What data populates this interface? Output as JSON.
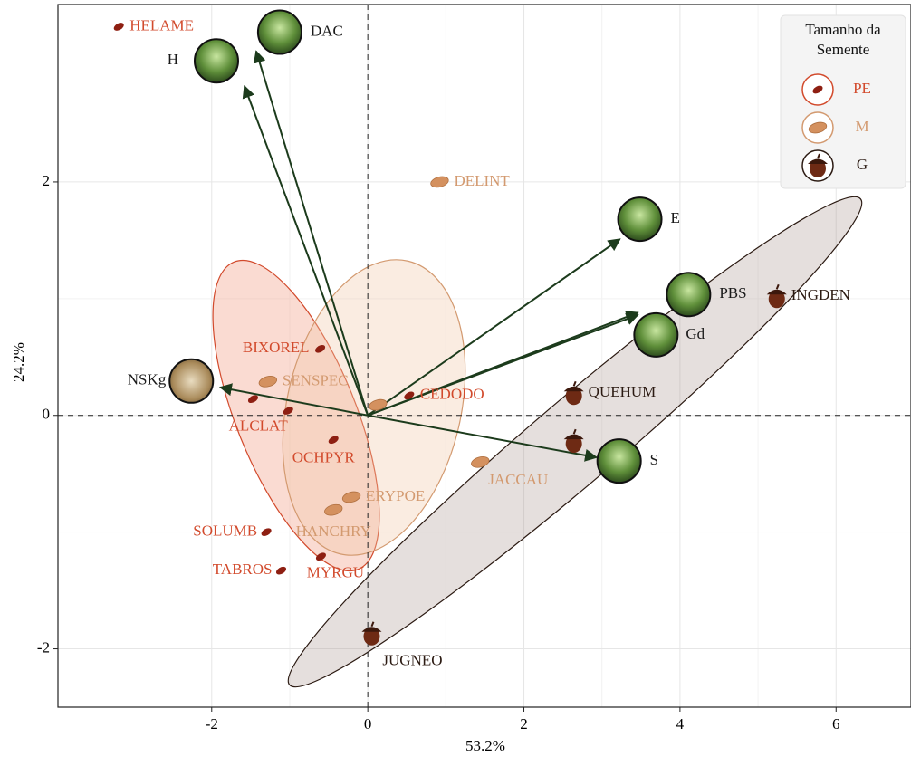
{
  "chart_data": {
    "type": "scatter",
    "xlabel": "53.2%",
    "ylabel": "24.2%",
    "xlim": [
      -3.97,
      6.96
    ],
    "ylim": [
      -2.5,
      3.52
    ],
    "xticks": [
      -2,
      0,
      2,
      4,
      6
    ],
    "yticks": [
      -2,
      0,
      2
    ],
    "grid": true,
    "legend": {
      "title": "Tamanho da Semente",
      "position": "top-right"
    },
    "series": [
      {
        "name": "PE",
        "color": "#d24a2c",
        "marker_color": "#8e1f12",
        "x": [
          -3.19,
          -0.61,
          0.53,
          -1.47,
          -1.02,
          -0.44,
          -1.3,
          -1.11,
          -0.6
        ],
        "y": [
          3.33,
          0.57,
          0.17,
          0.14,
          0.04,
          -0.21,
          -1.0,
          -1.33,
          -1.21
        ],
        "labels": [
          "HELAME",
          "BIXOREL",
          "CEDODO",
          null,
          "ALCLAT",
          "OCHPYR",
          "SOLUMB",
          "TABROS",
          "MYRGU"
        ]
      },
      {
        "name": "M",
        "color": "#d39a70",
        "marker_color": "#d4915f",
        "x": [
          0.92,
          -1.28,
          0.13,
          1.44,
          -0.21,
          -0.44
        ],
        "y": [
          2.0,
          0.29,
          0.09,
          -0.4,
          -0.7,
          -0.81
        ],
        "labels": [
          "DELINT",
          "SENSPEC",
          null,
          "JACCAU",
          "ERYPOE",
          "HANCHRY"
        ]
      },
      {
        "name": "G",
        "color": "#2b1a12",
        "marker_color": "#6e2a14",
        "x": [
          5.24,
          2.64,
          2.64,
          0.05
        ],
        "y": [
          1.02,
          0.19,
          -0.22,
          -1.87
        ],
        "labels": [
          "INGDEN",
          "QUEHUM",
          null,
          "JUGNEO"
        ]
      }
    ],
    "vectors": {
      "color": "#1c3b1c",
      "names": [
        "H",
        "DAC",
        "E",
        "PBS",
        "Gd",
        "NSKg",
        "S"
      ],
      "x": [
        -1.58,
        -1.43,
        3.23,
        3.46,
        3.46,
        -1.89,
        2.93
      ],
      "y": [
        2.82,
        3.12,
        1.51,
        0.88,
        0.86,
        0.24,
        -0.36
      ]
    }
  }
}
